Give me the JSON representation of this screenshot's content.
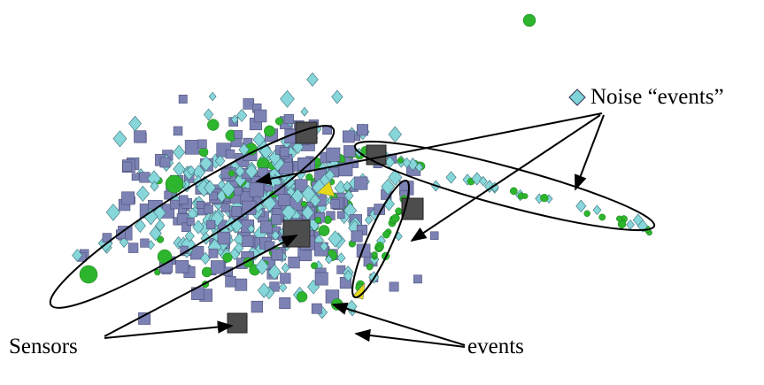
{
  "annotations": [
    {
      "text": "Noise “events”"
    },
    {
      "text": "Sensors"
    },
    {
      "text": "events"
    }
  ]
}
